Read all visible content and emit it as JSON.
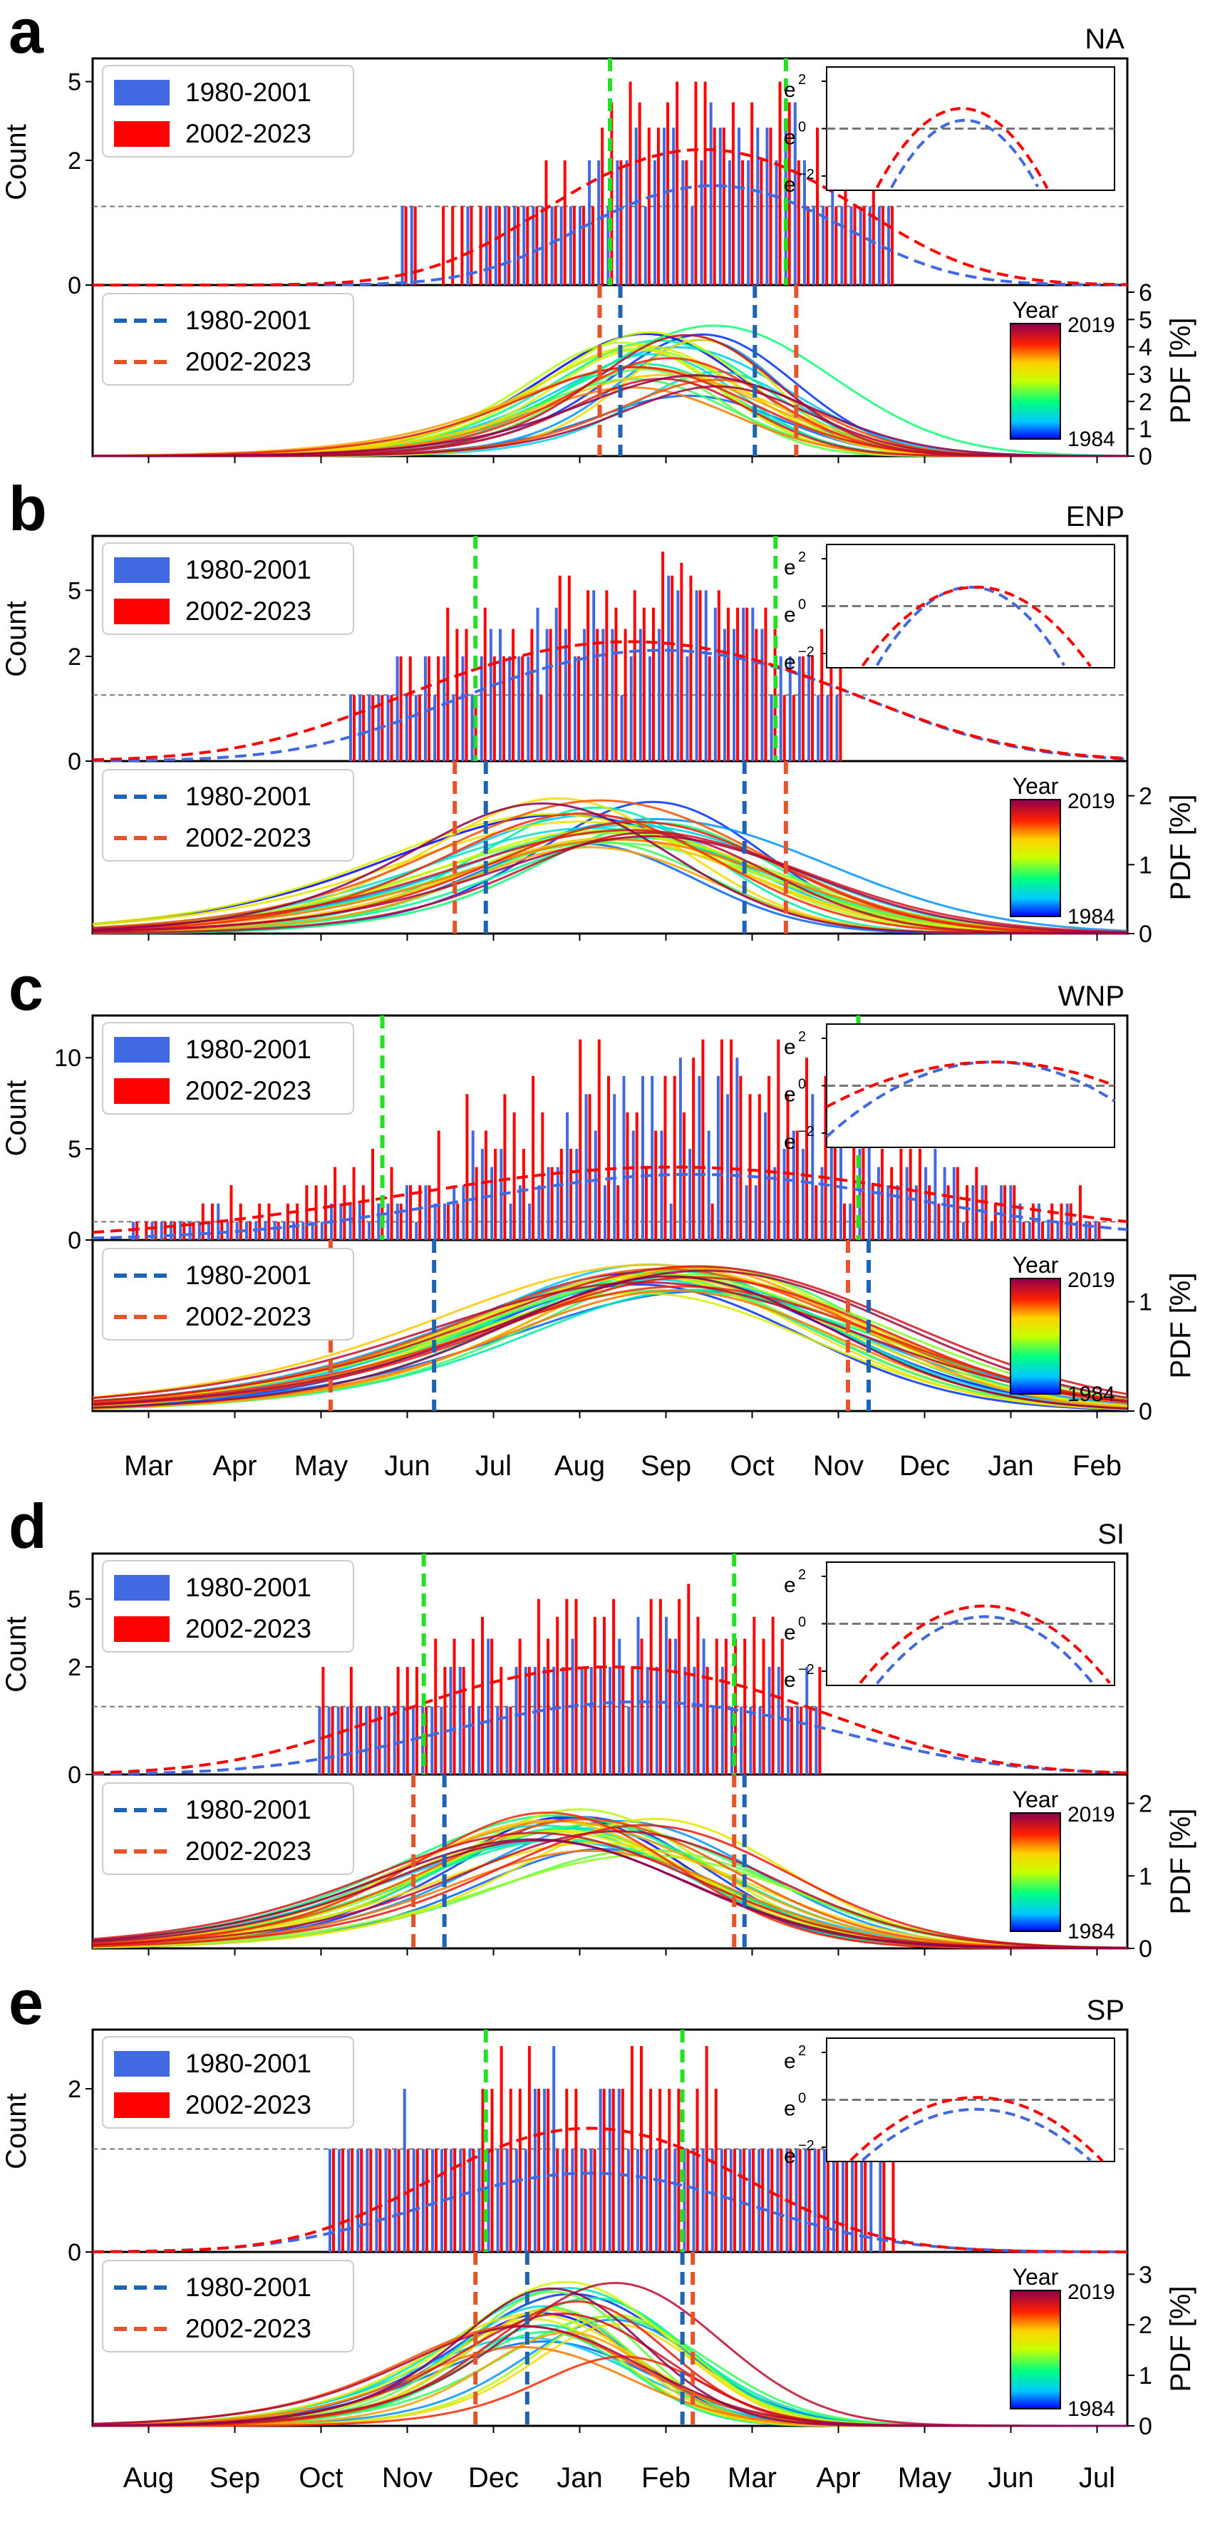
{
  "chart_data": [
    {
      "type": "bar",
      "panel_letter": "a",
      "region": "NA",
      "top": {
        "ylabel": "Count",
        "y_ticks": [
          "0",
          "2",
          "5"
        ],
        "y_tick_values": [
          0,
          2,
          5
        ],
        "y_transform": "log1p",
        "ylim": [
          0,
          6
        ],
        "reference_level": 1,
        "green_lines_pos": [
          0.5,
          0.67
        ],
        "series": [
          {
            "name": "1980-2001",
            "color": "#4169e1",
            "center": 0.6,
            "spread": 0.09,
            "peak": 1.3,
            "pdf_peak": 1.4
          },
          {
            "name": "2002-2023",
            "color": "#ff0000",
            "center": 0.59,
            "spread": 0.1,
            "peak": 2.2,
            "pdf_peak": 2.3
          }
        ],
        "x_start": 0.3,
        "x_end": 0.77,
        "bar_seed": 11,
        "inset": {
          "y_tick_exponents": [
            "2",
            "0",
            "−2"
          ],
          "e_label": "e",
          "curves": [
            {
              "color": "#4169e1",
              "center": 0.48,
              "peak": 0.35,
              "halfwidth": 0.26
            },
            {
              "color": "#ff0000",
              "center": 0.47,
              "peak": 0.85,
              "halfwidth": 0.3
            }
          ]
        }
      },
      "bottom": {
        "ylabel": "PDF [%]",
        "right_ticks": [
          "0",
          "1",
          "2",
          "3",
          "4",
          "5",
          "6"
        ],
        "right_tick_values": [
          0,
          1,
          2,
          3,
          4,
          5,
          6
        ],
        "ylim": [
          0,
          6
        ],
        "legend": [
          {
            "name": "1980-2001",
            "color": "#1f63b4"
          },
          {
            "name": "2002-2023",
            "color": "#e8542a"
          }
        ],
        "percentile_lines": {
          "blue": [
            0.51,
            0.64
          ],
          "orange": [
            0.49,
            0.68
          ]
        },
        "colorbar": {
          "title": "Year",
          "max_label": "2019",
          "min_label": "1984"
        },
        "curves": {
          "count": 28,
          "center": 0.57,
          "center_spread": 0.05,
          "width": 0.09,
          "width_spread": 0.04,
          "peak_min": 2.2,
          "peak_max": 5.0,
          "seed": 3
        }
      }
    },
    {
      "type": "bar",
      "panel_letter": "b",
      "region": "ENP",
      "top": {
        "ylabel": "Count",
        "y_ticks": [
          "0",
          "2",
          "5"
        ],
        "y_tick_values": [
          0,
          2,
          5
        ],
        "y_transform": "log1p",
        "ylim": [
          0,
          9
        ],
        "reference_level": 1,
        "green_lines_pos": [
          0.37,
          0.66
        ],
        "series": [
          {
            "name": "1980-2001",
            "color": "#4169e1",
            "center": 0.55,
            "spread": 0.13,
            "peak": 2.0,
            "pdf_peak": 2.2
          },
          {
            "name": "2002-2023",
            "color": "#ff0000",
            "center": 0.52,
            "spread": 0.14,
            "peak": 2.4,
            "pdf_peak": 2.5
          }
        ],
        "x_start": 0.25,
        "x_end": 0.72,
        "bar_seed": 29,
        "inset": {
          "y_tick_exponents": [
            "2",
            "0",
            "−2"
          ],
          "e_label": "e",
          "curves": [
            {
              "color": "#4169e1",
              "center": 0.5,
              "peak": 0.8,
              "halfwidth": 0.33
            },
            {
              "color": "#ff0000",
              "center": 0.52,
              "peak": 0.8,
              "halfwidth": 0.4
            }
          ]
        }
      },
      "bottom": {
        "ylabel": "PDF [%]",
        "right_ticks": [
          "0",
          "1",
          "2"
        ],
        "right_tick_values": [
          0,
          1,
          2
        ],
        "ylim": [
          0,
          2.4
        ],
        "legend": [
          {
            "name": "1980-2001",
            "color": "#1f63b4"
          },
          {
            "name": "2002-2023",
            "color": "#e8542a"
          }
        ],
        "percentile_lines": {
          "blue": [
            0.38,
            0.63
          ],
          "orange": [
            0.35,
            0.67
          ]
        },
        "colorbar": {
          "title": "Year",
          "max_label": "2019",
          "min_label": "1984"
        },
        "curves": {
          "count": 28,
          "center": 0.5,
          "center_spread": 0.06,
          "width": 0.13,
          "width_spread": 0.05,
          "peak_min": 1.3,
          "peak_max": 2.1,
          "seed": 7
        }
      }
    },
    {
      "type": "bar",
      "panel_letter": "c",
      "region": "WNP",
      "top": {
        "ylabel": "Count",
        "y_ticks": [
          "0",
          "5",
          "10"
        ],
        "y_tick_values": [
          0,
          5,
          10
        ],
        "y_transform": "linear",
        "ylim": [
          0,
          12
        ],
        "reference_level": 1,
        "green_lines_pos": [
          0.28,
          0.74
        ],
        "series": [
          {
            "name": "1980-2001",
            "color": "#4169e1",
            "center": 0.58,
            "spread": 0.19,
            "peak": 3.4,
            "pdf_peak": 3.6
          },
          {
            "name": "2002-2023",
            "color": "#ff0000",
            "center": 0.56,
            "spread": 0.23,
            "peak": 4.0,
            "pdf_peak": 4.0
          }
        ],
        "x_start": 0.04,
        "x_end": 0.97,
        "bar_seed": 47,
        "inset": {
          "y_tick_exponents": [
            "2",
            "0",
            "−2"
          ],
          "e_label": "e",
          "curves": [
            {
              "color": "#4169e1",
              "center": 0.58,
              "peak": 1.0,
              "halfwidth": 0.62
            },
            {
              "color": "#ff0000",
              "center": 0.58,
              "peak": 1.0,
              "halfwidth": 0.8
            }
          ]
        }
      },
      "bottom": {
        "ylabel": "PDF [%]",
        "right_ticks": [
          "0",
          "1"
        ],
        "right_tick_values": [
          0,
          1
        ],
        "ylim": [
          0,
          1.5
        ],
        "legend": [
          {
            "name": "1980-2001",
            "color": "#1f63b4"
          },
          {
            "name": "2002-2023",
            "color": "#e8542a"
          }
        ],
        "percentile_lines": {
          "blue": [
            0.33,
            0.75
          ],
          "orange": [
            0.23,
            0.73
          ]
        },
        "colorbar": {
          "title": "Year",
          "max_label": "2019",
          "min_label": "1984"
        },
        "curves": {
          "count": 28,
          "center": 0.57,
          "center_spread": 0.04,
          "width": 0.17,
          "width_spread": 0.04,
          "peak_min": 1.1,
          "peak_max": 1.4,
          "seed": 13
        }
      },
      "x_ticks": [
        "Mar",
        "Apr",
        "May",
        "Jun",
        "Jul",
        "Aug",
        "Sep",
        "Oct",
        "Nov",
        "Dec",
        "Jan",
        "Feb"
      ]
    },
    {
      "type": "bar",
      "panel_letter": "d",
      "region": "SI",
      "top": {
        "ylabel": "Count",
        "y_ticks": [
          "0",
          "2",
          "5"
        ],
        "y_tick_values": [
          0,
          2,
          5
        ],
        "y_transform": "log1p",
        "ylim": [
          0,
          8
        ],
        "reference_level": 1,
        "green_lines_pos": [
          0.32,
          0.62
        ],
        "series": [
          {
            "name": "1980-2001",
            "color": "#4169e1",
            "center": 0.53,
            "spread": 0.14,
            "peak": 1.1,
            "pdf_peak": 1.1
          },
          {
            "name": "2002-2023",
            "color": "#ff0000",
            "center": 0.5,
            "spread": 0.14,
            "peak": 2.0,
            "pdf_peak": 2.0
          }
        ],
        "x_start": 0.22,
        "x_end": 0.7,
        "bar_seed": 61,
        "inset": {
          "y_tick_exponents": [
            "2",
            "0",
            "−2"
          ],
          "e_label": "e",
          "curves": [
            {
              "color": "#4169e1",
              "center": 0.55,
              "peak": 0.3,
              "halfwidth": 0.38
            },
            {
              "color": "#ff0000",
              "center": 0.55,
              "peak": 0.75,
              "halfwidth": 0.44
            }
          ]
        }
      },
      "bottom": {
        "ylabel": "PDF [%]",
        "right_ticks": [
          "0",
          "1",
          "2"
        ],
        "right_tick_values": [
          0,
          1,
          2
        ],
        "ylim": [
          0,
          2.3
        ],
        "legend": [
          {
            "name": "1980-2001",
            "color": "#1f63b4"
          },
          {
            "name": "2002-2023",
            "color": "#e8542a"
          }
        ],
        "percentile_lines": {
          "blue": [
            0.34,
            0.63
          ],
          "orange": [
            0.31,
            0.62
          ]
        },
        "colorbar": {
          "title": "Year",
          "max_label": "2019",
          "min_label": "1984"
        },
        "curves": {
          "count": 28,
          "center": 0.5,
          "center_spread": 0.06,
          "width": 0.13,
          "width_spread": 0.03,
          "peak_min": 1.3,
          "peak_max": 2.0,
          "seed": 19
        }
      }
    },
    {
      "type": "bar",
      "panel_letter": "e",
      "region": "SP",
      "top": {
        "ylabel": "Count",
        "y_ticks": [
          "0",
          "2"
        ],
        "y_tick_values": [
          0,
          2
        ],
        "y_transform": "log1p",
        "ylim": [
          0,
          3.3
        ],
        "reference_level": 1,
        "green_lines_pos": [
          0.38,
          0.57
        ],
        "series": [
          {
            "name": "1980-2001",
            "color": "#4169e1",
            "center": 0.48,
            "spread": 0.12,
            "peak": 0.65,
            "pdf_peak": 0.7
          },
          {
            "name": "2002-2023",
            "color": "#ff0000",
            "center": 0.48,
            "spread": 0.11,
            "peak": 1.25,
            "pdf_peak": 1.3
          }
        ],
        "x_start": 0.23,
        "x_end": 0.78,
        "bar_seed": 83,
        "inset": {
          "y_tick_exponents": [
            "2",
            "0",
            "−2"
          ],
          "e_label": "e",
          "curves": [
            {
              "color": "#4169e1",
              "center": 0.52,
              "peak": -0.4,
              "halfwidth": 0.4
            },
            {
              "color": "#ff0000",
              "center": 0.52,
              "peak": 0.1,
              "halfwidth": 0.44
            }
          ]
        }
      },
      "bottom": {
        "ylabel": "PDF [%]",
        "right_ticks": [
          "0",
          "1",
          "2",
          "3"
        ],
        "right_tick_values": [
          0,
          1,
          2,
          3
        ],
        "ylim": [
          0,
          3.3
        ],
        "legend": [
          {
            "name": "1980-2001",
            "color": "#1f63b4"
          },
          {
            "name": "2002-2023",
            "color": "#e8542a"
          }
        ],
        "percentile_lines": {
          "blue": [
            0.42,
            0.57
          ],
          "orange": [
            0.37,
            0.58
          ]
        },
        "colorbar": {
          "title": "Year",
          "max_label": "2019",
          "min_label": "1984"
        },
        "curves": {
          "count": 28,
          "center": 0.47,
          "center_spread": 0.05,
          "width": 0.09,
          "width_spread": 0.03,
          "peak_min": 1.4,
          "peak_max": 3.0,
          "seed": 23
        }
      },
      "x_ticks": [
        "Aug",
        "Sep",
        "Oct",
        "Nov",
        "Dec",
        "Jan",
        "Feb",
        "Mar",
        "Apr",
        "May",
        "Jun",
        "Jul"
      ]
    }
  ]
}
